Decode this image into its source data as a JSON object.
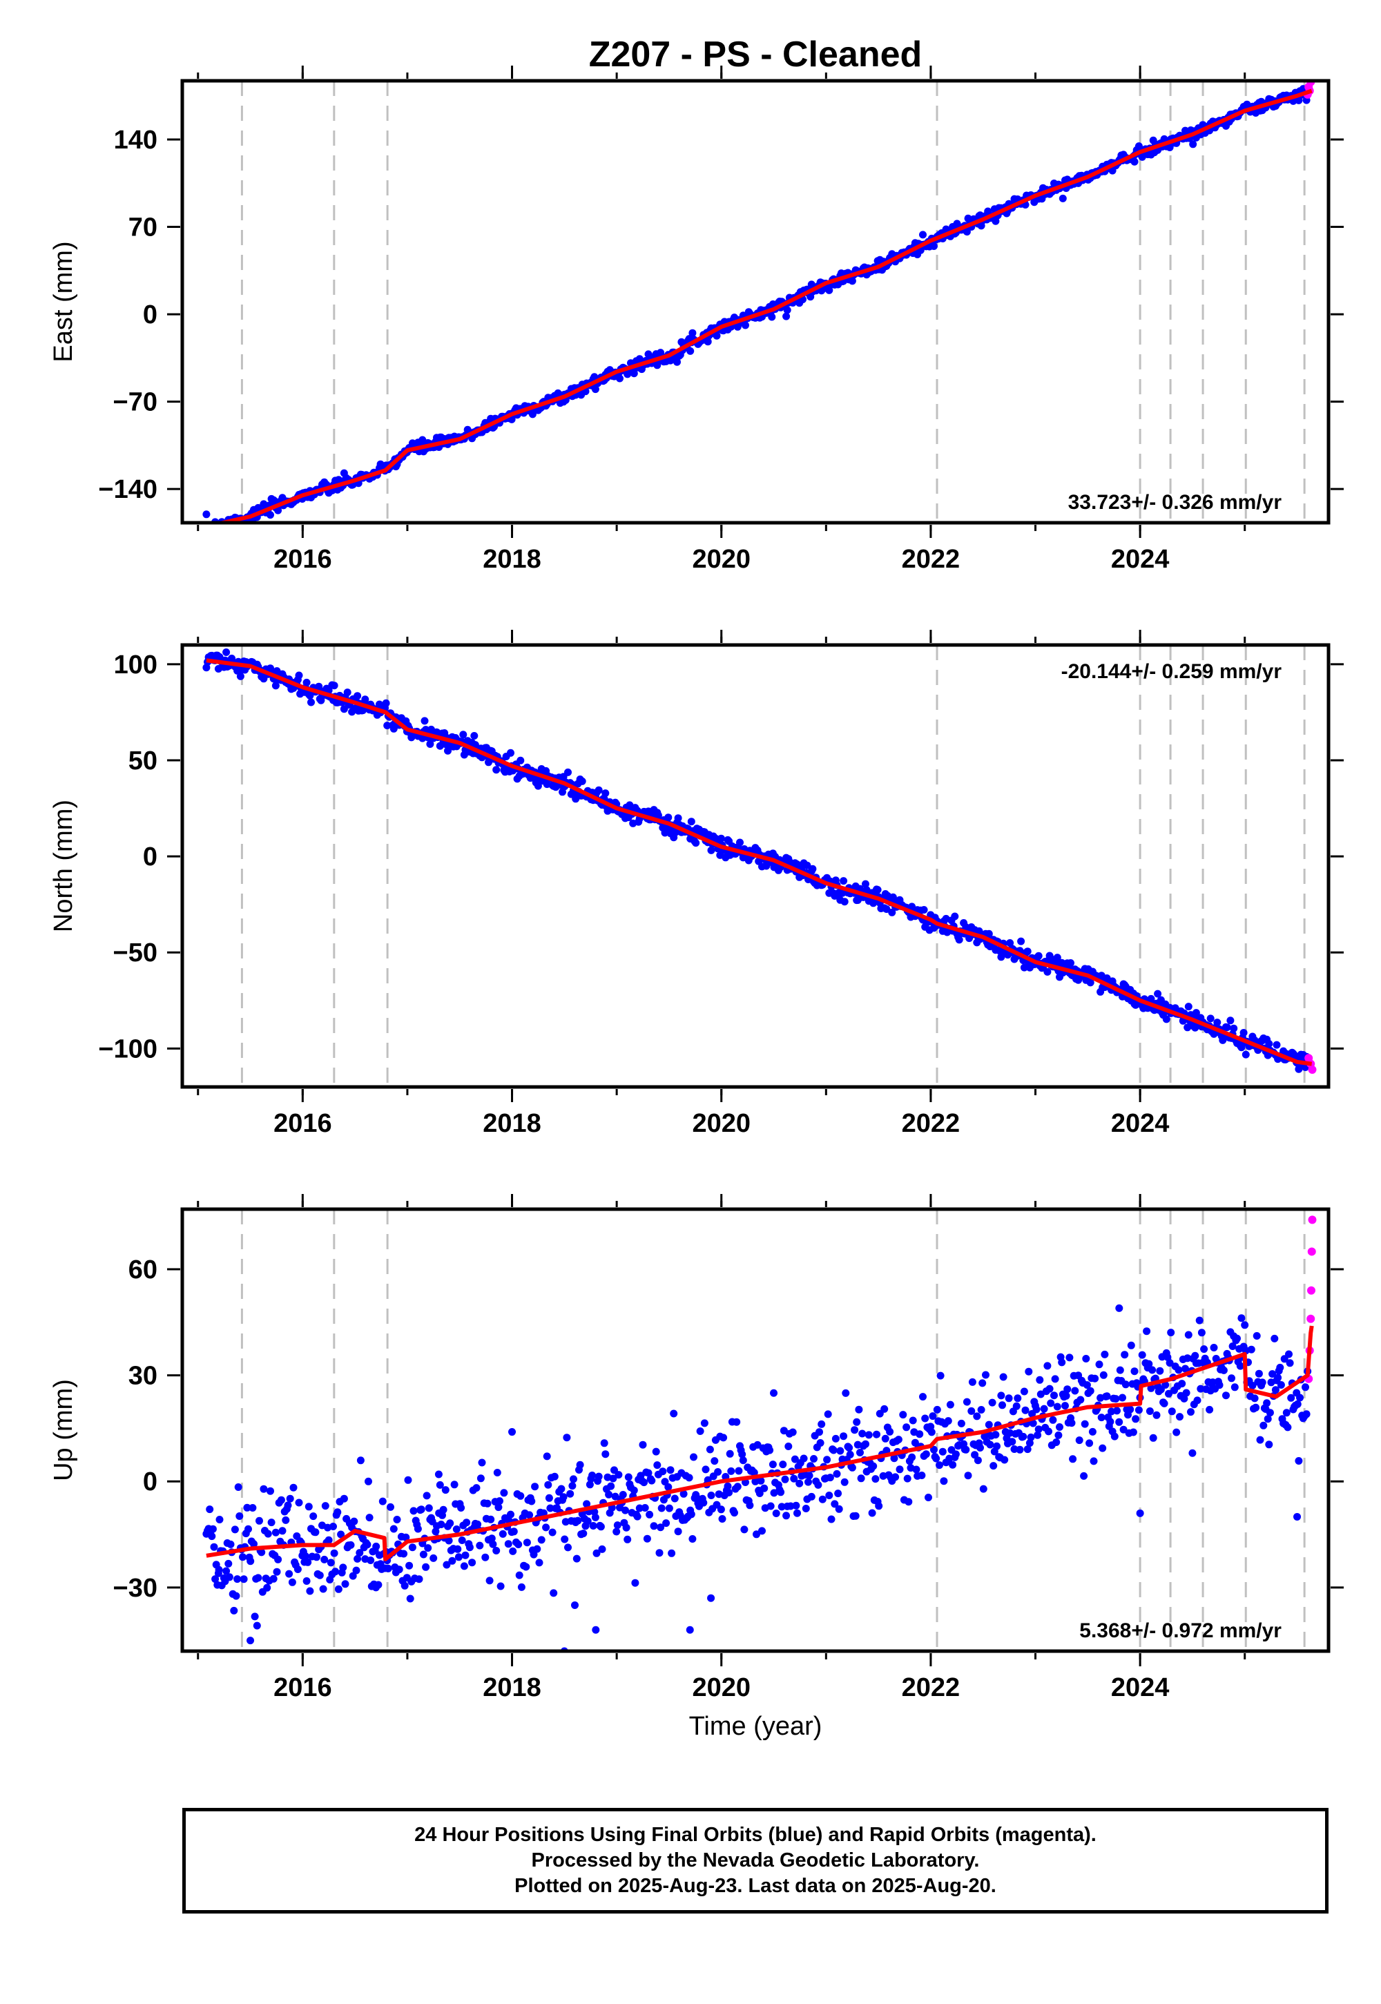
{
  "figure": {
    "title": "Z207  - PS - Cleaned",
    "xlabel": "Time (year)"
  },
  "colors": {
    "final_orbits": "#0000ff",
    "rapid_orbits": "#ff00ff",
    "model": "#ff0000",
    "event_lines": "#c0c0c0",
    "frame": "#000000"
  },
  "footer": {
    "line1": "24 Hour Positions Using Final Orbits (blue) and Rapid Orbits (magenta).",
    "line2": "Processed by the Nevada Geodetic Laboratory.",
    "line3": "Plotted on 2025-Aug-23. Last data on 2025-Aug-20."
  },
  "chart_data": [
    {
      "type": "scatter",
      "component": "east",
      "ylabel": "East (mm)",
      "rate_label": "33.723+/- 0.326 mm/yr",
      "rate_position": "bottom-right",
      "xlim": [
        2014.85,
        2025.8
      ],
      "ylim": [
        -167,
        187
      ],
      "xticks": [
        2016,
        2018,
        2020,
        2022,
        2024
      ],
      "yticks": [
        -140,
        -70,
        0,
        70,
        140
      ],
      "grid": false,
      "model": {
        "x": [
          2015.08,
          2015.5,
          2016.0,
          2016.5,
          2016.79,
          2017.0,
          2017.5,
          2018.0,
          2018.5,
          2019.0,
          2019.5,
          2020.0,
          2020.5,
          2021.0,
          2021.5,
          2022.0,
          2022.06,
          2022.5,
          2023.0,
          2023.5,
          2024.0,
          2024.5,
          2025.0,
          2025.5,
          2025.64
        ],
        "y": [
          -170,
          -162,
          -145,
          -133,
          -125,
          -109,
          -100,
          -80,
          -66,
          -46,
          -33,
          -10,
          4,
          25,
          38,
          59,
          61,
          76,
          95,
          110,
          130,
          144,
          163,
          175,
          179
        ]
      },
      "rapid_points": {
        "x": [
          2025.6,
          2025.61,
          2025.62,
          2025.63,
          2025.64,
          2025.645
        ],
        "y": [
          176,
          182,
          179,
          186,
          189,
          191
        ]
      },
      "point_count_final": 1000,
      "point_scatter_mm": 2.5
    },
    {
      "type": "scatter",
      "component": "north",
      "ylabel": "North (mm)",
      "rate_label": "-20.144+/- 0.259 mm/yr",
      "rate_position": "top-right",
      "xlim": [
        2014.85,
        2025.8
      ],
      "ylim": [
        -120,
        110
      ],
      "xticks": [
        2016,
        2018,
        2020,
        2022,
        2024
      ],
      "yticks": [
        -100,
        -50,
        0,
        50,
        100
      ],
      "grid": false,
      "model": {
        "x": [
          2015.08,
          2015.5,
          2016.0,
          2016.5,
          2016.79,
          2017.0,
          2017.5,
          2018.0,
          2018.5,
          2019.0,
          2019.5,
          2020.0,
          2020.5,
          2021.0,
          2021.5,
          2022.0,
          2022.06,
          2022.5,
          2023.0,
          2023.5,
          2024.0,
          2024.5,
          2025.0,
          2025.5,
          2025.64
        ],
        "y": [
          102,
          99,
          88,
          80,
          75,
          66,
          59,
          47,
          38,
          25,
          17,
          5,
          -2,
          -14,
          -22,
          -33,
          -35,
          -42,
          -55,
          -62,
          -75,
          -85,
          -96,
          -107,
          -108
        ]
      },
      "rapid_points": {
        "x": [
          2025.61,
          2025.63,
          2025.645
        ],
        "y": [
          -105,
          -108,
          -111
        ]
      },
      "point_count_final": 1000,
      "point_scatter_mm": 2.5
    },
    {
      "type": "scatter",
      "component": "up",
      "ylabel": "Up (mm)",
      "rate_label": "5.368+/- 0.972 mm/yr",
      "rate_position": "bottom-right",
      "xlim": [
        2014.85,
        2025.8
      ],
      "ylim": [
        -48,
        77
      ],
      "xticks": [
        2016,
        2018,
        2020,
        2022,
        2024
      ],
      "yticks": [
        -30,
        0,
        30,
        60
      ],
      "grid": false,
      "model": {
        "x": [
          2015.08,
          2015.5,
          2016.0,
          2016.3,
          2016.5,
          2016.78,
          2016.79,
          2017.0,
          2017.5,
          2018.0,
          2018.5,
          2019.0,
          2019.5,
          2020.0,
          2020.5,
          2021.0,
          2021.5,
          2022.0,
          2022.06,
          2022.5,
          2023.0,
          2023.5,
          2024.0,
          2024.01,
          2024.3,
          2024.6,
          2025.0,
          2025.01,
          2025.3,
          2025.6,
          2025.63,
          2025.64
        ],
        "y": [
          -21,
          -19,
          -18,
          -18,
          -14,
          -16,
          -22,
          -17,
          -15,
          -12,
          -9,
          -6,
          -3,
          0,
          2,
          4,
          7,
          10,
          12,
          14,
          18,
          21,
          22,
          27,
          29,
          32,
          36,
          26,
          24,
          30,
          42,
          44
        ]
      },
      "rapid_points": {
        "x": [
          2025.61,
          2025.62,
          2025.63,
          2025.635,
          2025.64,
          2025.645
        ],
        "y": [
          29,
          37,
          46,
          54,
          65,
          74
        ]
      },
      "outliers": {
        "x": [
          2015.2,
          2015.5,
          2016.7,
          2017.3,
          2018.0,
          2018.5,
          2018.6,
          2018.8,
          2019.7,
          2019.9,
          2020.5,
          2023.8,
          2024.0,
          2024.5,
          2025.5
        ],
        "y": [
          -25,
          -45,
          -30,
          2,
          14,
          -48,
          -35,
          -42,
          -42,
          -33,
          25,
          49,
          -9,
          8,
          -10
        ]
      },
      "point_count_final": 1000,
      "point_scatter_mm": 7.5
    }
  ],
  "events": [
    2015.42,
    2016.3,
    2016.81,
    2022.06,
    2024.0,
    2024.29,
    2024.6,
    2025.01,
    2025.57
  ]
}
